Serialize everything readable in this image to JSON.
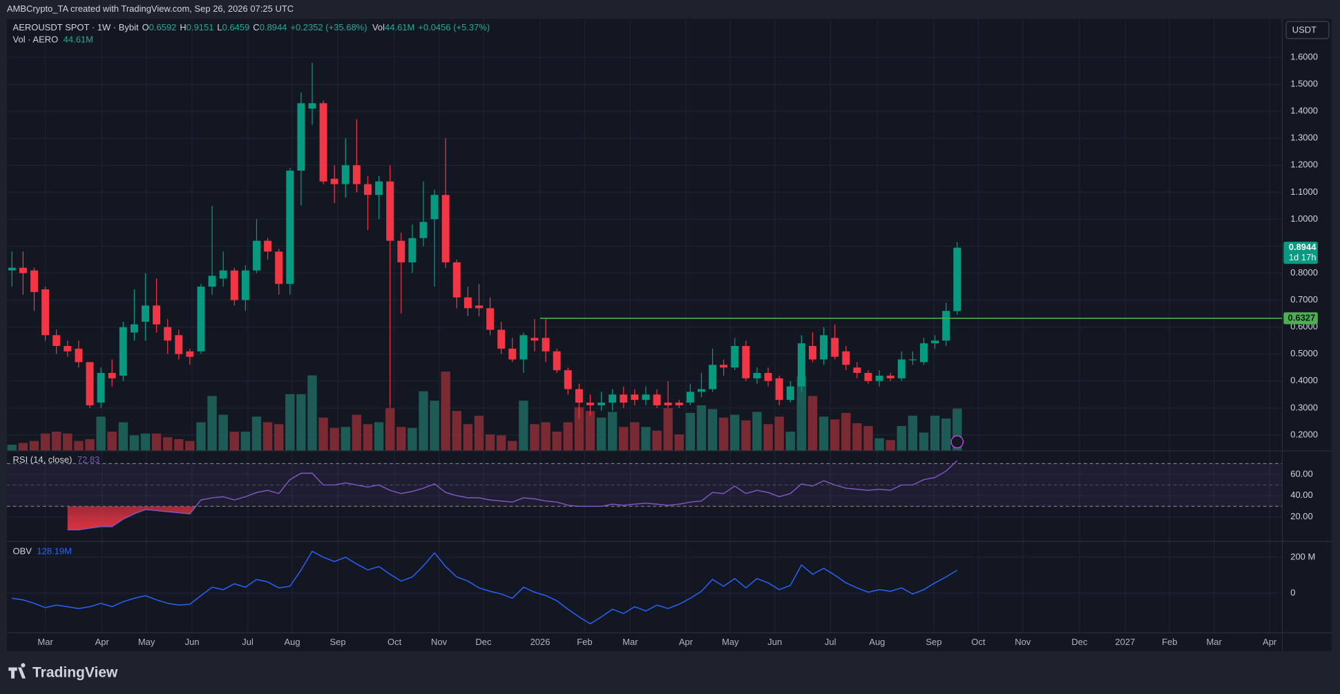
{
  "header": {
    "credit": "AMBCrypto_TA created with TradingView.com, Sep 26, 2026 07:25 UTC"
  },
  "chart_data": {
    "type": "candlestick",
    "title": "AEROUSDT SPOT · 1W · Bybit",
    "legend": {
      "o_label": "O",
      "h_label": "H",
      "l_label": "L",
      "c_label": "C",
      "change": "+0.2352 (+35.68%)",
      "vol_label": "Vol",
      "vol_change": "+0.0456 (+5.37%)"
    },
    "x": [
      0,
      1,
      2,
      3,
      4,
      5,
      6,
      7,
      8,
      9,
      10,
      11,
      12,
      13,
      14,
      15,
      16,
      17,
      18,
      19,
      20,
      21,
      22,
      23,
      24,
      25,
      26,
      27,
      28,
      29,
      30,
      31,
      32,
      33,
      34,
      35,
      36,
      37,
      38,
      39,
      40,
      41,
      42,
      43,
      44,
      45,
      46,
      47,
      48,
      49,
      50,
      51,
      52,
      53,
      54,
      55,
      56,
      57,
      58,
      59,
      60,
      61,
      62,
      63,
      64,
      65,
      66,
      67,
      68,
      69,
      70,
      71,
      72,
      73,
      74,
      75,
      76,
      77,
      78,
      79,
      80,
      81,
      82,
      83,
      84,
      85
    ],
    "open": [
      0.81,
      0.82,
      0.81,
      0.74,
      0.57,
      0.53,
      0.52,
      0.47,
      0.32,
      0.43,
      0.42,
      0.58,
      0.62,
      0.68,
      0.6,
      0.57,
      0.51,
      0.51,
      0.75,
      0.78,
      0.81,
      0.7,
      0.81,
      0.92,
      0.88,
      0.76,
      1.18,
      1.41,
      1.43,
      1.15,
      1.13,
      1.2,
      1.13,
      1.09,
      1.14,
      0.92,
      0.84,
      0.93,
      1.0,
      1.09,
      0.84,
      0.71,
      0.68,
      0.67,
      0.59,
      0.52,
      0.48,
      0.56,
      0.56,
      0.51,
      0.44,
      0.37,
      0.32,
      0.31,
      0.32,
      0.35,
      0.35,
      0.33,
      0.35,
      0.32,
      0.32,
      0.32,
      0.36,
      0.37,
      0.46,
      0.45,
      0.53,
      0.41,
      0.43,
      0.41,
      0.33,
      0.38,
      0.53,
      0.48,
      0.56,
      0.51,
      0.45,
      0.43,
      0.4,
      0.42,
      0.41,
      0.48,
      0.47,
      0.54,
      0.55,
      0.6592
    ],
    "high": [
      0.88,
      0.88,
      0.82,
      0.75,
      0.59,
      0.55,
      0.55,
      0.47,
      0.45,
      0.48,
      0.62,
      0.74,
      0.8,
      0.78,
      0.63,
      0.59,
      0.52,
      0.76,
      1.05,
      0.88,
      0.82,
      0.83,
      1.0,
      0.93,
      0.89,
      1.19,
      1.47,
      1.58,
      1.44,
      1.2,
      1.3,
      1.37,
      1.16,
      1.16,
      1.2,
      0.95,
      0.98,
      1.14,
      1.11,
      1.3,
      0.85,
      0.75,
      0.76,
      0.71,
      0.62,
      0.56,
      0.58,
      0.63,
      0.63,
      0.52,
      0.45,
      0.39,
      0.35,
      0.36,
      0.37,
      0.38,
      0.37,
      0.38,
      0.37,
      0.4,
      0.33,
      0.39,
      0.43,
      0.52,
      0.48,
      0.56,
      0.55,
      0.45,
      0.45,
      0.42,
      0.4,
      0.57,
      0.58,
      0.6,
      0.61,
      0.53,
      0.47,
      0.44,
      0.44,
      0.43,
      0.51,
      0.51,
      0.56,
      0.57,
      0.69,
      0.9151
    ],
    "low": [
      0.75,
      0.72,
      0.66,
      0.55,
      0.5,
      0.49,
      0.45,
      0.3,
      0.3,
      0.38,
      0.4,
      0.55,
      0.55,
      0.58,
      0.5,
      0.48,
      0.46,
      0.5,
      0.72,
      0.75,
      0.68,
      0.66,
      0.8,
      0.85,
      0.72,
      0.72,
      1.05,
      1.35,
      1.13,
      1.06,
      1.08,
      1.1,
      0.96,
      1.0,
      0.3,
      0.65,
      0.8,
      0.9,
      0.75,
      0.82,
      0.67,
      0.64,
      0.64,
      0.57,
      0.5,
      0.47,
      0.43,
      0.51,
      0.47,
      0.43,
      0.35,
      0.26,
      0.27,
      0.29,
      0.29,
      0.3,
      0.31,
      0.31,
      0.3,
      0.3,
      0.3,
      0.31,
      0.34,
      0.36,
      0.42,
      0.44,
      0.4,
      0.39,
      0.38,
      0.31,
      0.32,
      0.36,
      0.47,
      0.46,
      0.48,
      0.44,
      0.41,
      0.39,
      0.38,
      0.4,
      0.4,
      0.46,
      0.46,
      0.52,
      0.53,
      0.6459
    ],
    "close": [
      0.82,
      0.8,
      0.73,
      0.57,
      0.53,
      0.51,
      0.47,
      0.31,
      0.43,
      0.41,
      0.6,
      0.61,
      0.68,
      0.61,
      0.55,
      0.5,
      0.49,
      0.75,
      0.79,
      0.81,
      0.7,
      0.81,
      0.92,
      0.88,
      0.76,
      1.18,
      1.43,
      1.43,
      1.14,
      1.13,
      1.2,
      1.13,
      1.09,
      1.14,
      0.92,
      0.84,
      0.93,
      0.99,
      1.09,
      0.84,
      0.71,
      0.67,
      0.67,
      0.59,
      0.52,
      0.48,
      0.57,
      0.55,
      0.51,
      0.44,
      0.37,
      0.32,
      0.31,
      0.32,
      0.35,
      0.32,
      0.33,
      0.35,
      0.31,
      0.31,
      0.31,
      0.36,
      0.37,
      0.46,
      0.45,
      0.53,
      0.41,
      0.43,
      0.4,
      0.33,
      0.38,
      0.54,
      0.48,
      0.57,
      0.49,
      0.46,
      0.43,
      0.4,
      0.42,
      0.41,
      0.48,
      0.48,
      0.54,
      0.55,
      0.66,
      0.8944
    ],
    "up_color": "#089981",
    "down_color": "#f23645",
    "xlim": [
      -0.46,
      114.2
    ],
    "xticks": [
      {
        "value": 3.0,
        "label": "Mar"
      },
      {
        "value": 8.1,
        "label": "Apr"
      },
      {
        "value": 12.1,
        "label": "May"
      },
      {
        "value": 16.2,
        "label": "Jun"
      },
      {
        "value": 21.2,
        "label": "Jul"
      },
      {
        "value": 25.2,
        "label": "Aug"
      },
      {
        "value": 29.3,
        "label": "Sep"
      },
      {
        "value": 34.4,
        "label": "Oct"
      },
      {
        "value": 38.4,
        "label": "Nov"
      },
      {
        "value": 42.4,
        "label": "Dec"
      },
      {
        "value": 47.5,
        "label": "2026"
      },
      {
        "value": 51.5,
        "label": "Feb"
      },
      {
        "value": 55.6,
        "label": "Mar"
      },
      {
        "value": 60.6,
        "label": "Apr"
      },
      {
        "value": 64.6,
        "label": "May"
      },
      {
        "value": 68.6,
        "label": "Jun"
      },
      {
        "value": 73.6,
        "label": "Jul"
      },
      {
        "value": 77.8,
        "label": "Aug"
      },
      {
        "value": 82.9,
        "label": "Sep"
      },
      {
        "value": 86.9,
        "label": "Oct"
      },
      {
        "value": 90.9,
        "label": "Nov"
      },
      {
        "value": 96.0,
        "label": "Dec"
      },
      {
        "value": 100.1,
        "label": "2027"
      },
      {
        "value": 104.1,
        "label": "Feb"
      },
      {
        "value": 108.1,
        "label": "Mar"
      },
      {
        "value": 113.1,
        "label": "Apr"
      }
    ],
    "ylim": [
      0.1429,
      1.7425
    ],
    "yticks": [
      {
        "value": 0.2,
        "label": "0.2000"
      },
      {
        "value": 0.3,
        "label": "0.3000"
      },
      {
        "value": 0.4,
        "label": "0.4000"
      },
      {
        "value": 0.5,
        "label": "0.5000"
      },
      {
        "value": 0.6,
        "label": "0.6000"
      },
      {
        "value": 0.7,
        "label": "0.7000"
      },
      {
        "value": 0.8,
        "label": "0.8000"
      },
      {
        "value": 0.9,
        "label": "0.9000"
      },
      {
        "value": 1.0,
        "label": "1.0000"
      },
      {
        "value": 1.1,
        "label": "1.1000"
      },
      {
        "value": 1.2,
        "label": "1.2000"
      },
      {
        "value": 1.3,
        "label": "1.3000"
      },
      {
        "value": 1.4,
        "label": "1.4000"
      },
      {
        "value": 1.5,
        "label": "1.5000"
      },
      {
        "value": 1.6,
        "label": "1.6000"
      }
    ],
    "grid": true,
    "currency": "USDT",
    "countdown": "1d 17h",
    "level": {
      "value": 0.6327,
      "from_x": 47.5,
      "color": "#4caf50"
    },
    "volume": {
      "title": "Vol · AERO",
      "up_color": "#1d5b55",
      "down_color": "#7a2a33",
      "ylim": [
        0,
        460
      ],
      "values": [
        6,
        8,
        10,
        18,
        20,
        18,
        10,
        12,
        36,
        20,
        30,
        16,
        18,
        18,
        14,
        12,
        10,
        30,
        58,
        38,
        20,
        20,
        36,
        30,
        28,
        60,
        60,
        80,
        35,
        24,
        25,
        38,
        28,
        30,
        45,
        25,
        24,
        63,
        53,
        84,
        42,
        28,
        37,
        17,
        16,
        10,
        53,
        28,
        30,
        20,
        30,
        46,
        42,
        35,
        41,
        25,
        30,
        25,
        21,
        45,
        17,
        40,
        48,
        44,
        35,
        38,
        32,
        41,
        28,
        36,
        20,
        79,
        58,
        36,
        33,
        40,
        29,
        26,
        13,
        11,
        26,
        37,
        19,
        37,
        34,
        44.61
      ],
      "value_label": "44.61M"
    },
    "rsi": {
      "title": "RSI (14, close)",
      "color": "#7e57c2",
      "oversold_color": "#f23645",
      "ylim": [
        -2.4,
        81.6
      ],
      "yticks": [
        {
          "value": 20,
          "label": "20.00"
        },
        {
          "value": 40,
          "label": "40.00"
        },
        {
          "value": 60,
          "label": "60.00"
        }
      ],
      "bands": [
        30,
        70
      ],
      "mid": 50,
      "values": [
        null,
        null,
        null,
        null,
        null,
        8,
        8,
        9.6,
        11,
        11,
        18,
        23,
        27,
        26,
        25,
        24,
        23,
        36,
        38,
        39,
        36,
        39,
        43,
        45,
        42,
        55,
        61,
        61,
        50,
        50,
        52,
        50,
        48,
        50,
        45,
        42,
        44,
        47,
        51,
        43,
        40,
        38,
        38,
        36,
        35,
        34,
        38,
        37,
        35,
        34,
        31,
        30,
        30,
        30,
        32,
        31,
        32,
        33,
        32,
        31,
        32,
        34,
        35,
        43,
        42,
        49,
        42,
        45,
        43,
        39,
        42,
        51,
        49,
        54,
        50,
        47,
        46,
        45,
        46,
        45,
        50,
        50,
        55,
        57,
        63,
        72.83
      ]
    },
    "obv": {
      "title": "OBV",
      "color": "#2962ff",
      "ylim": [
        -219,
        286
      ],
      "yticks": [
        0,
        {
          "value": 200,
          "label": "200 M"
        }
      ],
      "values": [
        -29,
        -38,
        -57,
        -81,
        -67,
        -76,
        -86,
        -76,
        -57,
        -76,
        -48,
        -29,
        -14,
        -38,
        -57,
        -67,
        -62,
        -14,
        33,
        19,
        52,
        33,
        76,
        62,
        29,
        38,
        129,
        233,
        200,
        176,
        200,
        162,
        129,
        148,
        105,
        67,
        90,
        152,
        224,
        148,
        90,
        67,
        29,
        10,
        -5,
        -29,
        33,
        5,
        -14,
        -43,
        -90,
        -133,
        -171,
        -133,
        -90,
        -114,
        -76,
        -100,
        -67,
        -86,
        -62,
        -29,
        10,
        76,
        38,
        81,
        29,
        81,
        57,
        19,
        43,
        157,
        105,
        138,
        100,
        57,
        29,
        5,
        19,
        10,
        29,
        -5,
        19,
        57,
        90,
        128.19
      ],
      "value_label": "128.19M"
    }
  },
  "footer": {
    "brand": "TradingView"
  }
}
